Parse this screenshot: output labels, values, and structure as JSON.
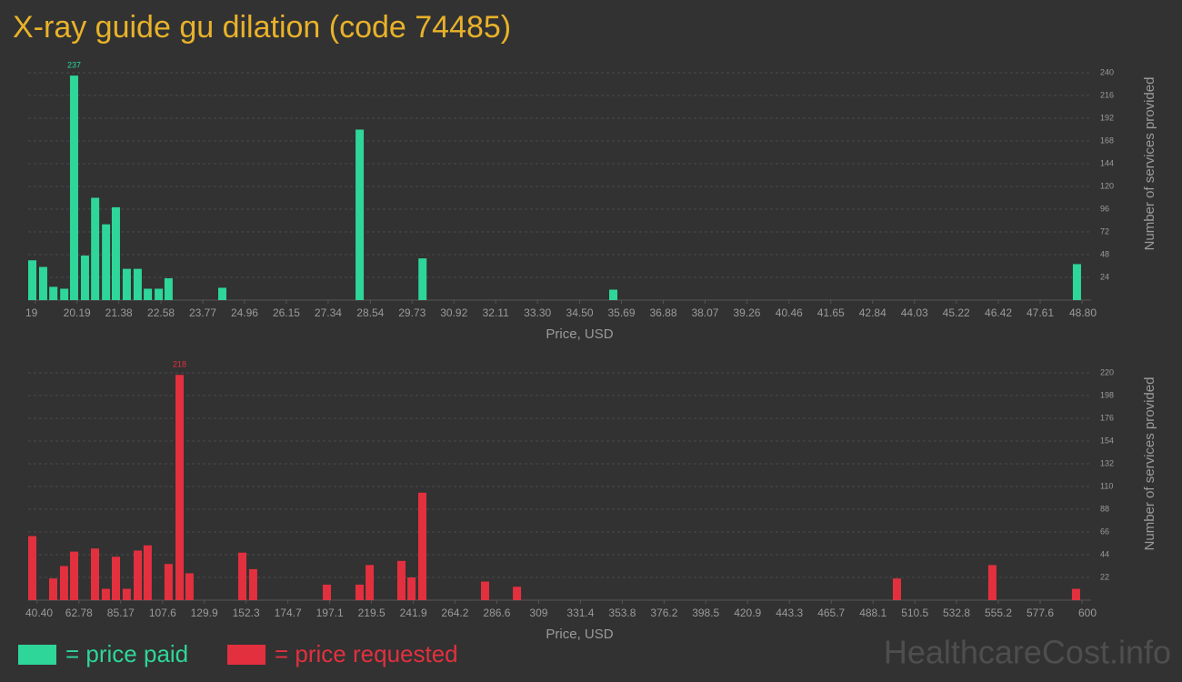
{
  "title": "X-ray guide gu dilation (code 74485)",
  "watermark": "HealthcareCost.info",
  "chart_data": [
    {
      "type": "bar",
      "x_label": "Price, USD",
      "y_label": "Number of services provided",
      "xlim": [
        18.8,
        48.8
      ],
      "ylim": [
        0,
        240
      ],
      "xticks": [
        19,
        20.19,
        21.38,
        22.58,
        23.77,
        24.96,
        26.15,
        27.34,
        28.54,
        29.73,
        30.92,
        32.11,
        {
          "value": 33.3,
          "label": "33.30"
        },
        {
          "value": 34.5,
          "label": "34.50"
        },
        35.69,
        36.88,
        38.07,
        39.26,
        40.46,
        41.65,
        42.84,
        44.03,
        45.22,
        46.42,
        47.61,
        {
          "value": 48.8,
          "label": "48.80"
        }
      ],
      "yticks": [
        24,
        48,
        72,
        96,
        120,
        144,
        168,
        192,
        216,
        240
      ],
      "grid": true,
      "series": [
        {
          "name": "= price paid",
          "color": "#2ed69a",
          "x": [
            18.8,
            19.11,
            19.4,
            19.71,
            19.99,
            20.3,
            20.59,
            20.9,
            21.18,
            21.49,
            21.8,
            22.09,
            22.4,
            22.68,
            24.21,
            28.12,
            29.91,
            35.34,
            48.54
          ],
          "values": [
            42,
            35,
            14,
            12,
            237,
            47,
            108,
            80,
            98,
            33,
            33,
            12,
            12,
            23,
            13,
            180,
            44,
            11,
            38
          ]
        }
      ]
    },
    {
      "type": "bar",
      "x_label": "Price, USD",
      "y_label": "Number of services provided",
      "xlim": [
        35.6,
        600
      ],
      "ylim": [
        0,
        220
      ],
      "xticks": [
        {
          "value": 40.4,
          "label": "40.40"
        },
        62.78,
        85.17,
        107.6,
        129.9,
        152.3,
        174.7,
        197.1,
        219.5,
        241.9,
        264.2,
        286.6,
        309,
        331.4,
        353.8,
        376.2,
        398.5,
        420.9,
        443.3,
        465.7,
        488.1,
        510.5,
        532.8,
        555.2,
        577.6,
        600
      ],
      "yticks": [
        22,
        44,
        66,
        88,
        110,
        132,
        154,
        176,
        198,
        220
      ],
      "grid": true,
      "series": [
        {
          "name": "= price requested",
          "color": "#e3303f",
          "x": [
            35.6,
            46.8,
            52.6,
            58.0,
            69.2,
            75.0,
            80.4,
            86.2,
            92.1,
            97.4,
            108.6,
            114.5,
            119.8,
            148.1,
            153.9,
            193.4,
            210.9,
            216.3,
            233.3,
            238.7,
            244.5,
            278.1,
            295.2,
            498.7,
            549.8,
            594.6
          ],
          "values": [
            62,
            21,
            33,
            47,
            50,
            11,
            42,
            11,
            48,
            53,
            35,
            218,
            26,
            46,
            30,
            15,
            15,
            34,
            38,
            22,
            104,
            18,
            13,
            21,
            34,
            11
          ]
        }
      ]
    }
  ]
}
